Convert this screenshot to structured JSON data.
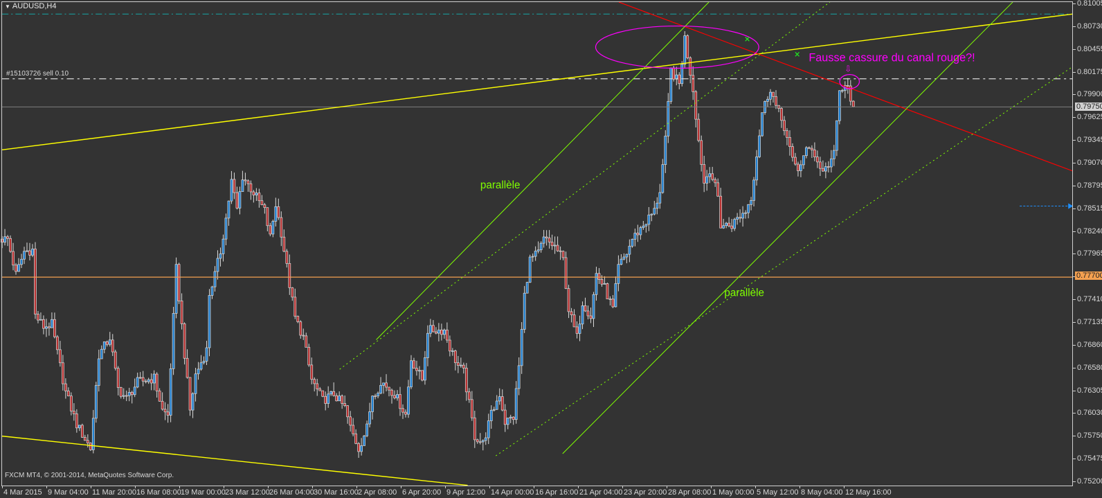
{
  "header": {
    "symbol_title": "AUDUSD,H4",
    "order_label": "#15103726 sell 0.10"
  },
  "footer": {
    "copyright": "FXCM MT4, © 2001-2014, MetaQuotes Software Corp."
  },
  "annotations": {
    "note": "Fausse cassure du canal rouge?!",
    "arrow": "⇩",
    "parallel_1": "parallèle",
    "parallel_2": "parallèle"
  },
  "colors": {
    "background": "#333333",
    "bull": "#1f7fd0",
    "bear": "#b83030",
    "candle_outline": "#d8d8d8",
    "trend_yellow": "#ffff00",
    "trend_red": "#ff0000",
    "channel_green": "#7fff00",
    "ellipse": "#ff00ff",
    "level_orange": "#f4a050",
    "tp_teal": "#1a9a9a"
  },
  "chart_data": {
    "type": "candlestick",
    "title": "AUDUSD,H4",
    "timeframe": "H4",
    "ylim": [
      0.752,
      0.81005
    ],
    "grid": false,
    "y_ticks": [
      "0.81005",
      "0.80730",
      "0.80455",
      "0.80175",
      "0.79900",
      "0.79625",
      "0.79345",
      "0.79070",
      "0.78795",
      "0.78515",
      "0.78240",
      "0.77965",
      "0.77700",
      "0.77410",
      "0.77135",
      "0.76860",
      "0.76580",
      "0.76305",
      "0.76030",
      "0.75750",
      "0.75475",
      "0.75200"
    ],
    "bid_label": "0.79750",
    "level_label": "0.77700",
    "x_ticks": [
      "4 Mar 2015",
      "9 Mar 04:00",
      "11 Mar 20:00",
      "16 Mar 08:00",
      "19 Mar 00:00",
      "23 Mar 12:00",
      "26 Mar 04:00",
      "30 Mar 16:00",
      "2 Apr 08:00",
      "6 Apr 20:00",
      "9 Apr 12:00",
      "14 Apr 00:00",
      "16 Apr 16:00",
      "21 Apr 04:00",
      "23 Apr 20:00",
      "28 Apr 08:00",
      "1 May 00:00",
      "5 May 12:00",
      "8 May 04:00",
      "12 May 16:00"
    ],
    "bars_per_x_tick": 16,
    "price_path": [
      [
        0,
        0.7815
      ],
      [
        2,
        0.7815
      ],
      [
        5,
        0.7772
      ],
      [
        8,
        0.78
      ],
      [
        11,
        0.7802
      ],
      [
        12,
        0.7723
      ],
      [
        15,
        0.7709
      ],
      [
        18,
        0.7712
      ],
      [
        20,
        0.7677
      ],
      [
        23,
        0.763
      ],
      [
        27,
        0.7591
      ],
      [
        32,
        0.7562
      ],
      [
        35,
        0.7675
      ],
      [
        39,
        0.7696
      ],
      [
        42,
        0.7634
      ],
      [
        45,
        0.7622
      ],
      [
        49,
        0.7642
      ],
      [
        55,
        0.7647
      ],
      [
        58,
        0.7608
      ],
      [
        60,
        0.7602
      ],
      [
        63,
        0.7779
      ],
      [
        66,
        0.7676
      ],
      [
        68,
        0.7608
      ],
      [
        70,
        0.7651
      ],
      [
        74,
        0.7681
      ],
      [
        75,
        0.7749
      ],
      [
        77,
        0.7772
      ],
      [
        79,
        0.78
      ],
      [
        81,
        0.784
      ],
      [
        83,
        0.7885
      ],
      [
        85,
        0.7851
      ],
      [
        87,
        0.7891
      ],
      [
        91,
        0.7871
      ],
      [
        95,
        0.7849
      ],
      [
        97,
        0.7817
      ],
      [
        99,
        0.7857
      ],
      [
        101,
        0.7823
      ],
      [
        104,
        0.776
      ],
      [
        106,
        0.772
      ],
      [
        109,
        0.7696
      ],
      [
        112,
        0.7645
      ],
      [
        116,
        0.762
      ],
      [
        120,
        0.7628
      ],
      [
        124,
        0.7611
      ],
      [
        126,
        0.7587
      ],
      [
        129,
        0.7562
      ],
      [
        132,
        0.7587
      ],
      [
        134,
        0.7628
      ],
      [
        138,
        0.7641
      ],
      [
        142,
        0.7628
      ],
      [
        146,
        0.7603
      ],
      [
        148,
        0.767
      ],
      [
        152,
        0.7645
      ],
      [
        154,
        0.7705
      ],
      [
        160,
        0.7705
      ],
      [
        162,
        0.7684
      ],
      [
        165,
        0.7662
      ],
      [
        167,
        0.7654
      ],
      [
        171,
        0.7577
      ],
      [
        174,
        0.7568
      ],
      [
        177,
        0.7603
      ],
      [
        180,
        0.7628
      ],
      [
        182,
        0.7594
      ],
      [
        185,
        0.76
      ],
      [
        187,
        0.7662
      ],
      [
        189,
        0.7747
      ],
      [
        191,
        0.779
      ],
      [
        194,
        0.7798
      ],
      [
        196,
        0.7815
      ],
      [
        200,
        0.7806
      ],
      [
        203,
        0.779
      ],
      [
        205,
        0.773
      ],
      [
        208,
        0.7696
      ],
      [
        210,
        0.7739
      ],
      [
        213,
        0.7722
      ],
      [
        215,
        0.7773
      ],
      [
        218,
        0.7756
      ],
      [
        221,
        0.773
      ],
      [
        223,
        0.7781
      ],
      [
        226,
        0.7798
      ],
      [
        228,
        0.7815
      ],
      [
        232,
        0.7832
      ],
      [
        236,
        0.7849
      ],
      [
        238,
        0.7874
      ],
      [
        240,
        0.7934
      ],
      [
        242,
        0.8019
      ],
      [
        245,
        0.8002
      ],
      [
        247,
        0.8058
      ],
      [
        250,
        0.7996
      ],
      [
        252,
        0.7934
      ],
      [
        254,
        0.7883
      ],
      [
        256,
        0.79
      ],
      [
        259,
        0.7866
      ],
      [
        260,
        0.7832
      ],
      [
        264,
        0.7832
      ],
      [
        266,
        0.784
      ],
      [
        269,
        0.7849
      ],
      [
        271,
        0.7866
      ],
      [
        273,
        0.7917
      ],
      [
        275,
        0.7968
      ],
      [
        278,
        0.7998
      ],
      [
        280,
        0.7975
      ],
      [
        283,
        0.7951
      ],
      [
        286,
        0.7909
      ],
      [
        288,
        0.79
      ],
      [
        291,
        0.7921
      ],
      [
        293,
        0.7926
      ],
      [
        296,
        0.79
      ],
      [
        298,
        0.79
      ],
      [
        301,
        0.7917
      ],
      [
        303,
        0.7994
      ],
      [
        306,
        0.7998
      ],
      [
        308,
        0.7975
      ]
    ],
    "horizontal_levels": {
      "bid": 0.7975,
      "support": 0.777,
      "sell_order": 0.8009,
      "take_profit": 0.8087
    }
  }
}
